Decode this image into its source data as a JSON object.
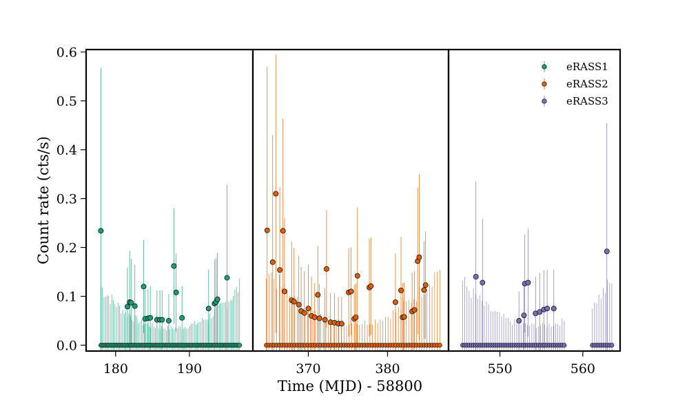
{
  "chart_data": {
    "type": "scatter",
    "title": "",
    "xlabel": "Time (MJD) - 58800",
    "ylabel": "Count rate (cts/s)",
    "ylim": [
      -0.012,
      0.605
    ],
    "yticks": [
      0.0,
      0.1,
      0.2,
      0.3,
      0.4,
      0.5,
      0.6
    ],
    "ytick_labels": [
      "0.0",
      "0.1",
      "0.2",
      "0.3",
      "0.4",
      "0.5",
      "0.6"
    ],
    "legend_position": "top-right",
    "errorbar_style": "thin vertical error bars on every point",
    "panels": [
      {
        "name": "eRASS1",
        "color": "#1b9e77",
        "xlim": [
          176.0,
          198.6
        ],
        "xticks": [
          180,
          190
        ],
        "xtick_labels": [
          "180",
          "190"
        ],
        "zero_range": [
          178.0,
          196.8
        ],
        "zero_count": 90,
        "zero_err_min": 0.035,
        "zero_err_max": 0.12,
        "detections": [
          {
            "x": 178.0,
            "y": 0.234,
            "err": 0.333
          },
          {
            "x": 181.6,
            "y": 0.079,
            "err": 0.08
          },
          {
            "x": 181.9,
            "y": 0.088,
            "err": 0.105
          },
          {
            "x": 182.1,
            "y": 0.087,
            "err": 0.09
          },
          {
            "x": 182.6,
            "y": 0.08,
            "err": 0.085
          },
          {
            "x": 183.8,
            "y": 0.12,
            "err": 0.095
          },
          {
            "x": 184.0,
            "y": 0.054,
            "err": 0.06
          },
          {
            "x": 184.4,
            "y": 0.055,
            "err": 0.06
          },
          {
            "x": 184.7,
            "y": 0.056,
            "err": 0.065
          },
          {
            "x": 185.6,
            "y": 0.052,
            "err": 0.06
          },
          {
            "x": 186.0,
            "y": 0.052,
            "err": 0.06
          },
          {
            "x": 186.3,
            "y": 0.052,
            "err": 0.06
          },
          {
            "x": 187.2,
            "y": 0.05,
            "err": 0.055
          },
          {
            "x": 187.9,
            "y": 0.162,
            "err": 0.118
          },
          {
            "x": 188.2,
            "y": 0.108,
            "err": 0.08
          },
          {
            "x": 189.0,
            "y": 0.056,
            "err": 0.065
          },
          {
            "x": 192.6,
            "y": 0.075,
            "err": 0.08
          },
          {
            "x": 193.4,
            "y": 0.085,
            "err": 0.09
          },
          {
            "x": 193.6,
            "y": 0.088,
            "err": 0.09
          },
          {
            "x": 193.8,
            "y": 0.094,
            "err": 0.095
          },
          {
            "x": 195.1,
            "y": 0.138,
            "err": 0.19
          }
        ]
      },
      {
        "name": "eRASS2",
        "color": "#d95f02",
        "xlim": [
          363.0,
          387.7
        ],
        "xticks": [
          370,
          380
        ],
        "xtick_labels": [
          "370",
          "380"
        ],
        "zero_range": [
          364.7,
          386.6
        ],
        "zero_count": 68,
        "zero_err_min": 0.045,
        "zero_err_max": 0.16,
        "detections": [
          {
            "x": 364.8,
            "y": 0.235,
            "err": 0.335
          },
          {
            "x": 365.5,
            "y": 0.17,
            "err": 0.26
          },
          {
            "x": 365.9,
            "y": 0.31,
            "err": 0.285
          },
          {
            "x": 366.4,
            "y": 0.154,
            "err": 0.17
          },
          {
            "x": 366.8,
            "y": 0.234,
            "err": 0.23
          },
          {
            "x": 367.0,
            "y": 0.11,
            "err": 0.15
          },
          {
            "x": 367.9,
            "y": 0.092,
            "err": 0.12
          },
          {
            "x": 368.2,
            "y": 0.089,
            "err": 0.11
          },
          {
            "x": 368.8,
            "y": 0.083,
            "err": 0.1
          },
          {
            "x": 369.1,
            "y": 0.07,
            "err": 0.09
          },
          {
            "x": 369.5,
            "y": 0.066,
            "err": 0.085
          },
          {
            "x": 370.0,
            "y": 0.075,
            "err": 0.09
          },
          {
            "x": 370.4,
            "y": 0.06,
            "err": 0.08
          },
          {
            "x": 370.8,
            "y": 0.057,
            "err": 0.07
          },
          {
            "x": 371.2,
            "y": 0.103,
            "err": 0.1
          },
          {
            "x": 371.4,
            "y": 0.055,
            "err": 0.07
          },
          {
            "x": 372.1,
            "y": 0.052,
            "err": 0.065
          },
          {
            "x": 372.3,
            "y": 0.156,
            "err": 0.12
          },
          {
            "x": 372.8,
            "y": 0.047,
            "err": 0.06
          },
          {
            "x": 373.3,
            "y": 0.046,
            "err": 0.06
          },
          {
            "x": 373.8,
            "y": 0.044,
            "err": 0.055
          },
          {
            "x": 374.2,
            "y": 0.044,
            "err": 0.055
          },
          {
            "x": 375.1,
            "y": 0.108,
            "err": 0.09
          },
          {
            "x": 375.4,
            "y": 0.11,
            "err": 0.09
          },
          {
            "x": 375.8,
            "y": 0.054,
            "err": 0.07
          },
          {
            "x": 376.0,
            "y": 0.057,
            "err": 0.07
          },
          {
            "x": 376.2,
            "y": 0.142,
            "err": 0.14
          },
          {
            "x": 377.7,
            "y": 0.118,
            "err": 0.1
          },
          {
            "x": 377.9,
            "y": 0.121,
            "err": 0.1
          },
          {
            "x": 381.0,
            "y": 0.088,
            "err": 0.1
          },
          {
            "x": 381.7,
            "y": 0.112,
            "err": 0.11
          },
          {
            "x": 381.9,
            "y": 0.057,
            "err": 0.07
          },
          {
            "x": 382.1,
            "y": 0.058,
            "err": 0.07
          },
          {
            "x": 383.1,
            "y": 0.069,
            "err": 0.08
          },
          {
            "x": 383.4,
            "y": 0.072,
            "err": 0.08
          },
          {
            "x": 383.8,
            "y": 0.172,
            "err": 0.15
          },
          {
            "x": 384.0,
            "y": 0.18,
            "err": 0.17
          },
          {
            "x": 384.6,
            "y": 0.113,
            "err": 0.1
          },
          {
            "x": 384.8,
            "y": 0.123,
            "err": 0.11
          }
        ]
      },
      {
        "name": "eRASS3",
        "color": "#7570b3",
        "xlim": [
          543.8,
          564.5
        ],
        "xticks": [
          550,
          560
        ],
        "xtick_labels": [
          "550",
          "560"
        ],
        "zero_range": [
          545.5,
          563.5
        ],
        "zero_count": 70,
        "zero_gap": [
          557.8,
          561.0
        ],
        "zero_err_min": 0.04,
        "zero_err_max": 0.13,
        "detections": [
          {
            "x": 547.1,
            "y": 0.14,
            "err": 0.195
          },
          {
            "x": 547.9,
            "y": 0.128,
            "err": 0.13
          },
          {
            "x": 552.3,
            "y": 0.05,
            "err": 0.06
          },
          {
            "x": 552.9,
            "y": 0.061,
            "err": 0.07
          },
          {
            "x": 553.0,
            "y": 0.126,
            "err": 0.1
          },
          {
            "x": 553.4,
            "y": 0.128,
            "err": 0.11
          },
          {
            "x": 554.3,
            "y": 0.065,
            "err": 0.075
          },
          {
            "x": 554.8,
            "y": 0.068,
            "err": 0.08
          },
          {
            "x": 555.3,
            "y": 0.073,
            "err": 0.08
          },
          {
            "x": 555.7,
            "y": 0.075,
            "err": 0.08
          },
          {
            "x": 556.5,
            "y": 0.075,
            "err": 0.08
          },
          {
            "x": 562.9,
            "y": 0.192,
            "err": 0.263
          }
        ]
      }
    ],
    "legend": [
      "eRASS1",
      "eRASS2",
      "eRASS3"
    ]
  }
}
